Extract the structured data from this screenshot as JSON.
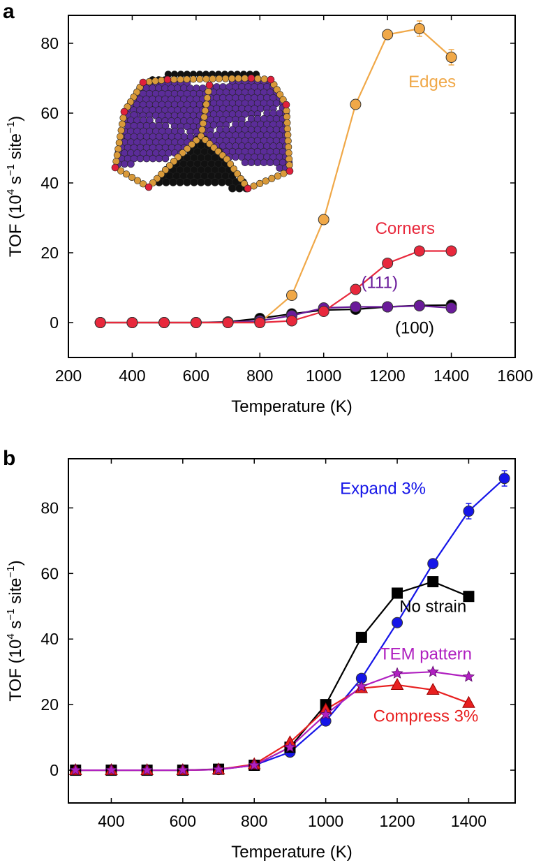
{
  "chart_data": [
    {
      "panel_label": "a",
      "type": "line",
      "xlabel": "Temperature (K)",
      "ylabel": {
        "prefix": "TOF (10",
        "sup1": "4",
        "mid1": " s",
        "sup2": "−1",
        "mid2": " site",
        "sup3": "−1",
        "suffix": ")"
      },
      "xlim": [
        200,
        1600
      ],
      "ylim": [
        -10,
        88
      ],
      "xticks": [
        200,
        400,
        600,
        800,
        1000,
        1200,
        1400,
        1600
      ],
      "yticks": [
        0,
        20,
        40,
        60,
        80
      ],
      "series": [
        {
          "name": "(100)",
          "color": "#000000",
          "marker": "circle",
          "x": [
            300,
            400,
            500,
            600,
            700,
            800,
            900,
            1000,
            1100,
            1200,
            1300,
            1400
          ],
          "y": [
            0,
            0,
            0,
            0,
            0.2,
            1.2,
            2.5,
            3.6,
            3.8,
            4.5,
            4.9,
            5.0
          ]
        },
        {
          "name": "(111)",
          "color": "#6a1b9a",
          "marker": "circle",
          "x": [
            300,
            400,
            500,
            600,
            700,
            800,
            900,
            1000,
            1100,
            1200,
            1300,
            1400
          ],
          "y": [
            0,
            0,
            0,
            0,
            0.1,
            0.5,
            2.0,
            4.2,
            4.5,
            4.5,
            4.8,
            4.2
          ]
        },
        {
          "name": "Edges",
          "color": "#f0a848",
          "marker": "circle",
          "error_points": [
            1300,
            1400
          ],
          "x": [
            300,
            400,
            500,
            600,
            700,
            800,
            900,
            1000,
            1100,
            1200,
            1300,
            1400
          ],
          "y": [
            0,
            0,
            0,
            0,
            0,
            0,
            7.8,
            29.5,
            62.5,
            82.5,
            84.2,
            76.0
          ]
        },
        {
          "name": "Corners",
          "color": "#e8283c",
          "marker": "circle",
          "x": [
            300,
            400,
            500,
            600,
            700,
            800,
            900,
            1000,
            1100,
            1200,
            1300,
            1400
          ],
          "y": [
            0,
            0,
            0,
            0,
            0,
            0,
            0.5,
            3.2,
            9.5,
            17.0,
            20.5,
            20.5
          ]
        }
      ],
      "annotations": [
        {
          "text": "Edges",
          "color": "#f0a848",
          "x": 1340,
          "y": 69
        },
        {
          "text": "Corners",
          "color": "#e8283c",
          "x": 1255,
          "y": 27
        },
        {
          "text": "(111)",
          "color": "#6a1b9a",
          "x": 1175,
          "y": 11.5
        },
        {
          "text": "(100)",
          "color": "#000000",
          "x": 1285,
          "y": -1.5
        }
      ],
      "inset": "nanoparticle model (purple, orange, red and black spheres)"
    },
    {
      "panel_label": "b",
      "type": "line",
      "xlabel": "Temperature (K)",
      "ylabel": {
        "prefix": "TOF (10",
        "sup1": "4",
        "mid1": " s",
        "sup2": "−1",
        "mid2": " site",
        "sup3": "−1",
        "suffix": ")"
      },
      "xlim": [
        280,
        1530
      ],
      "ylim": [
        -10,
        95
      ],
      "xticks": [
        400,
        600,
        800,
        1000,
        1200,
        1400
      ],
      "yticks": [
        0,
        20,
        40,
        60,
        80
      ],
      "series": [
        {
          "name": "Expand 3%",
          "color": "#1515e8",
          "marker": "circle",
          "error_points": [
            1400,
            1500
          ],
          "x": [
            300,
            400,
            500,
            600,
            700,
            800,
            900,
            1000,
            1100,
            1200,
            1300,
            1400,
            1500
          ],
          "y": [
            0,
            0,
            0,
            0,
            0.2,
            1.5,
            5.5,
            15.0,
            28.0,
            45.0,
            63.0,
            79.0,
            89.0
          ]
        },
        {
          "name": "No strain",
          "color": "#000000",
          "marker": "square",
          "x": [
            300,
            400,
            500,
            600,
            700,
            800,
            900,
            1000,
            1100,
            1200,
            1300,
            1400
          ],
          "y": [
            0,
            0,
            0,
            0,
            0.3,
            1.5,
            7.0,
            20.0,
            40.5,
            54.0,
            57.5,
            53.0
          ]
        },
        {
          "name": "Compress 3%",
          "color": "#e82020",
          "marker": "triangle",
          "x": [
            300,
            400,
            500,
            600,
            700,
            800,
            900,
            1000,
            1100,
            1200,
            1300,
            1400
          ],
          "y": [
            0,
            0,
            0,
            0,
            0.2,
            1.8,
            8.5,
            18.5,
            25.0,
            26.0,
            24.5,
            20.5
          ]
        },
        {
          "name": "TEM pattern",
          "color": "#b020c0",
          "marker": "star",
          "x": [
            300,
            400,
            500,
            600,
            700,
            800,
            900,
            1000,
            1100,
            1200,
            1300,
            1400
          ],
          "y": [
            0,
            0,
            0,
            0,
            0.2,
            1.5,
            7.0,
            17.0,
            25.5,
            29.5,
            30.0,
            28.5
          ]
        }
      ],
      "annotations": [
        {
          "text": "Expand 3%",
          "color": "#1515e8",
          "x": 1160,
          "y": 86
        },
        {
          "text": "No strain",
          "color": "#000000",
          "x": 1300,
          "y": 50
        },
        {
          "text": "TEM pattern",
          "color": "#b020c0",
          "x": 1280,
          "y": 35.5
        },
        {
          "text": "Compress 3%",
          "color": "#e82020",
          "x": 1280,
          "y": 16.5
        }
      ]
    }
  ]
}
